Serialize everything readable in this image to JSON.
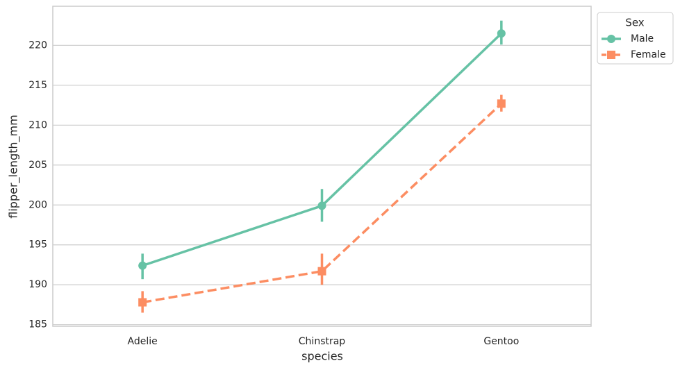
{
  "chart_data": {
    "type": "pointplot",
    "x_label": "species",
    "y_label": "flipper_length_mm",
    "categories": [
      "Adelie",
      "Chinstrap",
      "Gentoo"
    ],
    "series": [
      {
        "name": "Male",
        "color": "#66c2a5",
        "marker": "circle",
        "dashed": false,
        "values": [
          192.4,
          199.9,
          221.5
        ],
        "ci_lower": [
          190.7,
          197.9,
          220.1
        ],
        "ci_upper": [
          193.9,
          202.0,
          223.1
        ]
      },
      {
        "name": "Female",
        "color": "#fc8d62",
        "marker": "square",
        "dashed": true,
        "values": [
          187.8,
          191.7,
          212.7
        ],
        "ci_lower": [
          186.5,
          190.0,
          211.7
        ],
        "ci_upper": [
          189.2,
          193.9,
          213.8
        ]
      }
    ],
    "legend_title": "Sex",
    "ylim": [
      184.8,
      224.9
    ],
    "yticks": [
      185,
      190,
      195,
      200,
      205,
      210,
      215,
      220
    ],
    "grid": true
  }
}
